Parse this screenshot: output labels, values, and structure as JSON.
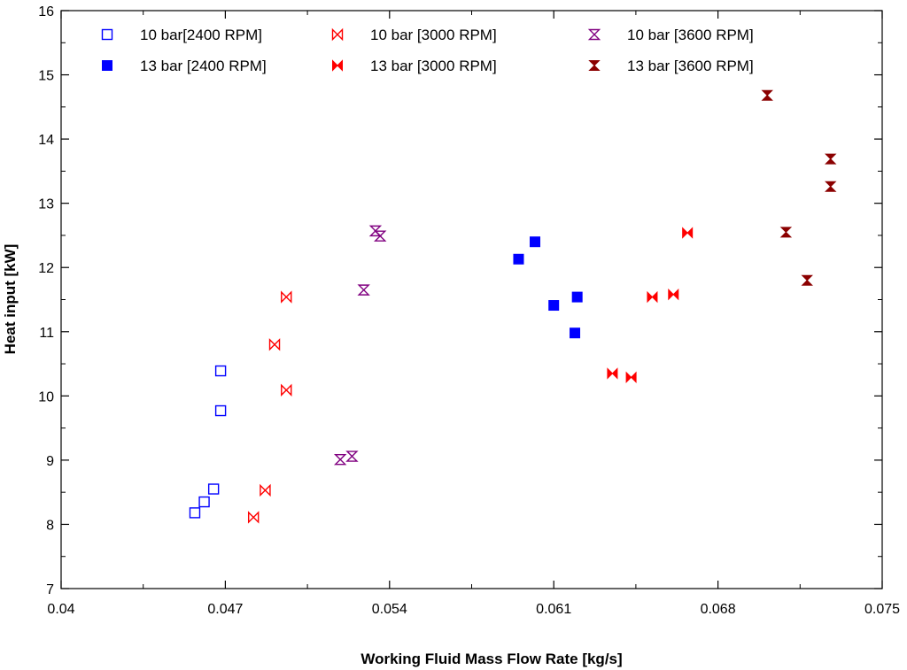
{
  "chart_data": {
    "type": "scatter",
    "title": "",
    "xlabel": "Working Fluid Mass Flow Rate [kg/s]",
    "ylabel": "Heat input [kW]",
    "xlim": [
      0.04,
      0.075
    ],
    "ylim": [
      7,
      16
    ],
    "xticks": [
      0.04,
      0.047,
      0.054,
      0.061,
      0.068,
      0.075
    ],
    "xtick_labels": [
      "0.04",
      "0.047",
      "0.054",
      "0.061",
      "0.068",
      "0.075"
    ],
    "yticks": [
      7,
      8,
      9,
      10,
      11,
      12,
      13,
      14,
      15,
      16
    ],
    "ytick_labels": [
      "7",
      "8",
      "9",
      "10",
      "11",
      "12",
      "13",
      "14",
      "15",
      "16"
    ],
    "grid": false,
    "legend_position": "top",
    "series": [
      {
        "name": "10 bar[2400 RPM]",
        "marker": "open-square",
        "color": "#0000ff",
        "points": [
          [
            0.0457,
            8.18
          ],
          [
            0.0461,
            8.35
          ],
          [
            0.0465,
            8.55
          ],
          [
            0.0468,
            9.77
          ],
          [
            0.0468,
            10.39
          ]
        ]
      },
      {
        "name": "10 bar [3000 RPM]",
        "marker": "open-bowtie",
        "color": "#ff0000",
        "points": [
          [
            0.0482,
            8.11
          ],
          [
            0.0487,
            8.53
          ],
          [
            0.0491,
            10.8
          ],
          [
            0.0496,
            10.09
          ],
          [
            0.0496,
            11.54
          ]
        ]
      },
      {
        "name": "10 bar [3600 RPM]",
        "marker": "open-hourglass",
        "color": "#800080",
        "points": [
          [
            0.0519,
            9.01
          ],
          [
            0.0524,
            9.06
          ],
          [
            0.0529,
            11.65
          ],
          [
            0.0534,
            12.57
          ],
          [
            0.0536,
            12.49
          ]
        ]
      },
      {
        "name": "13 bar [2400 RPM]",
        "marker": "filled-square",
        "color": "#0000ff",
        "points": [
          [
            0.0595,
            12.13
          ],
          [
            0.0602,
            12.4
          ],
          [
            0.061,
            11.41
          ],
          [
            0.0619,
            10.98
          ],
          [
            0.062,
            11.54
          ]
        ]
      },
      {
        "name": "13 bar [3000 RPM]",
        "marker": "filled-bowtie",
        "color": "#ff0000",
        "points": [
          [
            0.0635,
            10.35
          ],
          [
            0.0643,
            10.29
          ],
          [
            0.0652,
            11.54
          ],
          [
            0.0661,
            11.58
          ],
          [
            0.0667,
            12.54
          ]
        ]
      },
      {
        "name": "13 bar [3600 RPM]",
        "marker": "filled-hourglass",
        "color": "#8b0000",
        "points": [
          [
            0.0701,
            14.68
          ],
          [
            0.0709,
            12.55
          ],
          [
            0.0718,
            11.8
          ],
          [
            0.0728,
            13.26
          ],
          [
            0.0728,
            13.69
          ]
        ]
      }
    ]
  }
}
